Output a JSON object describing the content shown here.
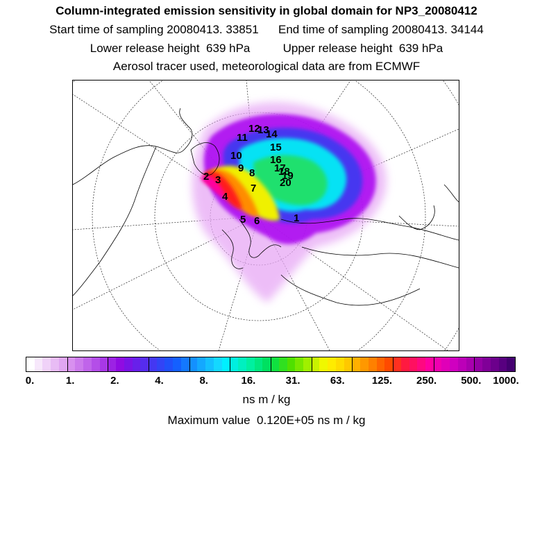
{
  "header": {
    "title": "Column-integrated emission sensitivity in global domain for NP3_20080412",
    "start_label": "Start time of sampling 20080413. 33851",
    "end_label": "End time of sampling 20080413. 34144",
    "lower_label": "Lower release height  639 hPa",
    "upper_label": "Upper release height  639 hPa",
    "info": "Aerosol tracer used, meteorological data are from ECMWF"
  },
  "map": {
    "trajectory_labels": [
      "1",
      "2",
      "3",
      "4",
      "5",
      "6",
      "7",
      "8",
      "9",
      "10",
      "11",
      "12",
      "13",
      "14",
      "15",
      "16",
      "17",
      "18",
      "19",
      "20"
    ],
    "colors": {
      "coast": "#000000",
      "grid": "#000000",
      "plume_outer": "#e7a8f5",
      "plume_purple": "#a800f0",
      "plume_blue": "#3a3af0",
      "plume_cyan": "#00f5f5",
      "plume_green": "#22e060",
      "plume_yellow": "#f0f000",
      "plume_orange": "#ff8c00",
      "plume_red": "#ff1a1a",
      "plume_magenta": "#ff00a0"
    }
  },
  "colorbar": {
    "colors": [
      "#ffffff",
      "#f7e8fb",
      "#f0d2f8",
      "#e8bcf5",
      "#e0a6f2",
      "#d890ef",
      "#cc7aec",
      "#c064ea",
      "#b44ee8",
      "#a838e6",
      "#9c22e4",
      "#900ce2",
      "#7a14e6",
      "#6820ea",
      "#562cee",
      "#4438f2",
      "#3244f6",
      "#2050fa",
      "#1460ff",
      "#1478ff",
      "#1490ff",
      "#14a8ff",
      "#14c0ff",
      "#14d8ff",
      "#00f0ff",
      "#00f0e0",
      "#00f0c0",
      "#00f0a0",
      "#00e880",
      "#00e060",
      "#10e040",
      "#30e020",
      "#50e000",
      "#78e800",
      "#a0f000",
      "#c8f400",
      "#f0f800",
      "#ffec00",
      "#ffdc00",
      "#ffc800",
      "#ffb000",
      "#ff9800",
      "#ff8000",
      "#ff6400",
      "#ff4a00",
      "#ff3020",
      "#ff1a40",
      "#ff1060",
      "#ff0880",
      "#ff00a0",
      "#f000b0",
      "#e000b8",
      "#d000c0",
      "#bc00b8",
      "#a800ae",
      "#9400a4",
      "#800098",
      "#6c008c",
      "#580080",
      "#440070"
    ],
    "tick_labels": [
      "0.",
      "1.",
      "2.",
      "4.",
      "8.",
      "16.",
      "31.",
      "63.",
      "125.",
      "250.",
      "500.",
      "1000."
    ],
    "units": "ns m / kg",
    "max_value_label": "Maximum value  0.120E+05 ns m / kg"
  }
}
